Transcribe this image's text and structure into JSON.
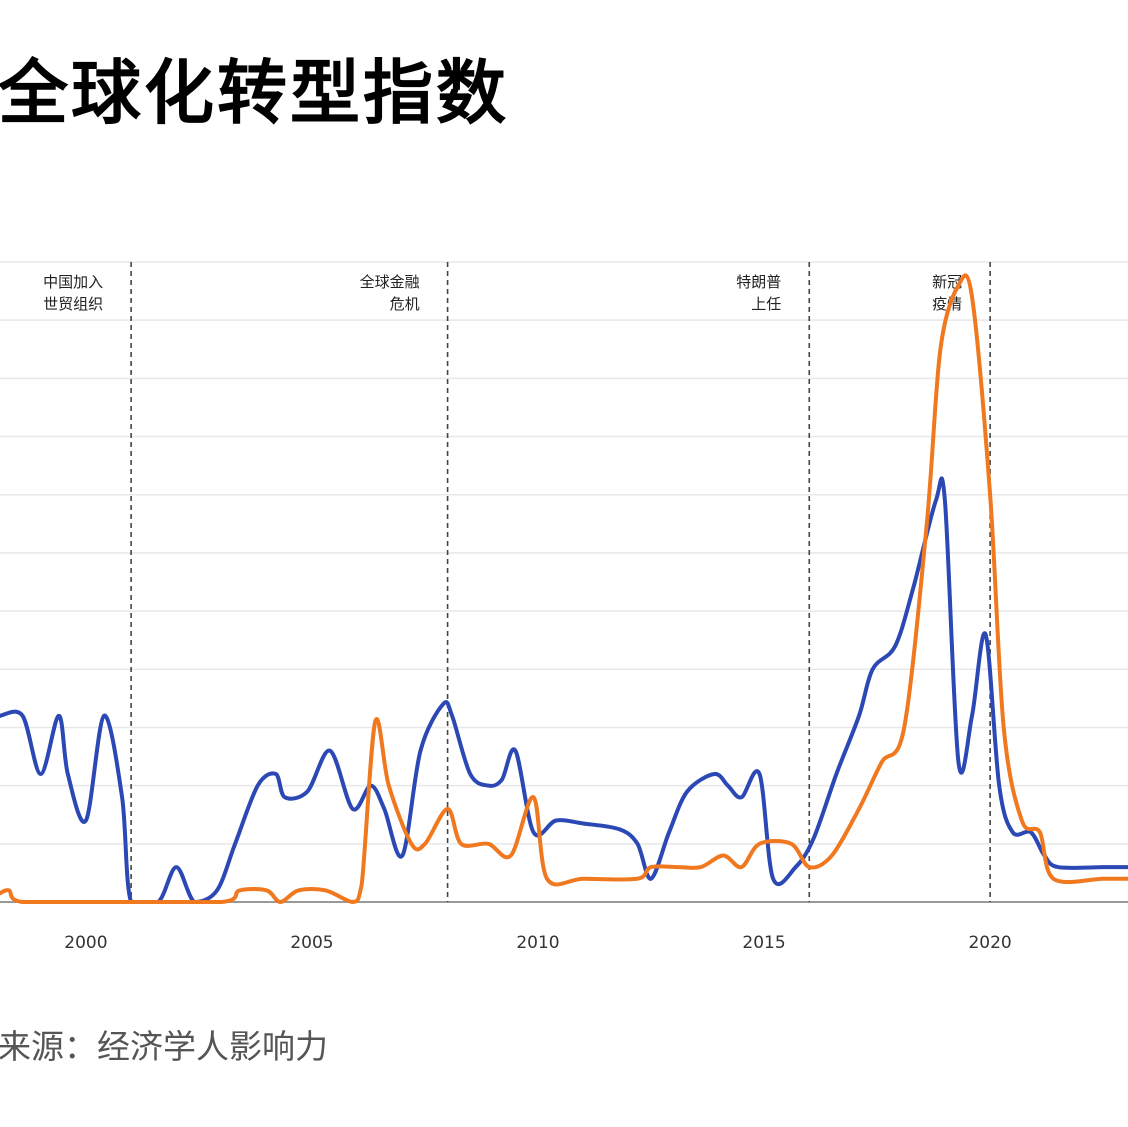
{
  "title": "全球化转型指数",
  "source": "来源：经济学人影响力",
  "chart_data": {
    "type": "line",
    "title": "全球化转型指数",
    "xlabel": "",
    "ylabel": "",
    "xlim": [
      1998.1,
      2023.05
    ],
    "ylim": [
      0,
      11
    ],
    "grid": "horizontal",
    "x_ticks": [
      "2000",
      "2005",
      "2010",
      "2015",
      "2020"
    ],
    "events": [
      {
        "x": 2001.0,
        "lines": [
          "中国加入",
          "世贸组织"
        ]
      },
      {
        "x": 2008.0,
        "lines": [
          "全球金融",
          "危机"
        ]
      },
      {
        "x": 2016.0,
        "lines": [
          "特朗普",
          "上任"
        ]
      },
      {
        "x": 2020.0,
        "lines": [
          "新冠",
          "疫情"
        ]
      }
    ],
    "colors": {
      "blue": "#2b48b4",
      "orange": "#f0781e",
      "grid": "#e8e8e8",
      "axis": "#999999",
      "event_line": "#444444"
    },
    "series": [
      {
        "color": "#2b48b4",
        "points": [
          [
            1998.1,
            3.2
          ],
          [
            1998.6,
            3.2
          ],
          [
            1999.0,
            2.2
          ],
          [
            1999.4,
            3.2
          ],
          [
            1999.6,
            2.2
          ],
          [
            2000.0,
            1.4
          ],
          [
            2000.4,
            3.2
          ],
          [
            2000.8,
            1.8
          ],
          [
            2001.0,
            0
          ],
          [
            2001.6,
            0
          ],
          [
            2002.0,
            0.6
          ],
          [
            2002.4,
            0
          ],
          [
            2002.9,
            0.2
          ],
          [
            2003.3,
            1.0
          ],
          [
            2003.8,
            2.0
          ],
          [
            2004.2,
            2.2
          ],
          [
            2004.4,
            1.8
          ],
          [
            2004.9,
            1.9
          ],
          [
            2005.4,
            2.6
          ],
          [
            2005.9,
            1.6
          ],
          [
            2006.3,
            2.0
          ],
          [
            2006.6,
            1.6
          ],
          [
            2007.0,
            0.8
          ],
          [
            2007.4,
            2.6
          ],
          [
            2007.9,
            3.4
          ],
          [
            2008.1,
            3.2
          ],
          [
            2008.5,
            2.2
          ],
          [
            2008.9,
            2.0
          ],
          [
            2009.2,
            2.1
          ],
          [
            2009.5,
            2.6
          ],
          [
            2009.9,
            1.2
          ],
          [
            2010.4,
            1.4
          ],
          [
            2011.0,
            1.35
          ],
          [
            2011.8,
            1.25
          ],
          [
            2012.2,
            1.0
          ],
          [
            2012.5,
            0.4
          ],
          [
            2012.9,
            1.2
          ],
          [
            2013.3,
            1.9
          ],
          [
            2013.9,
            2.2
          ],
          [
            2014.2,
            2.0
          ],
          [
            2014.5,
            1.8
          ],
          [
            2014.9,
            2.2
          ],
          [
            2015.2,
            0.4
          ],
          [
            2015.7,
            0.6
          ],
          [
            2016.1,
            1.1
          ],
          [
            2016.6,
            2.2
          ],
          [
            2017.1,
            3.2
          ],
          [
            2017.4,
            4.0
          ],
          [
            2017.9,
            4.4
          ],
          [
            2018.3,
            5.4
          ],
          [
            2018.8,
            6.9
          ],
          [
            2019.0,
            6.9
          ],
          [
            2019.3,
            2.4
          ],
          [
            2019.6,
            3.2
          ],
          [
            2019.9,
            4.6
          ],
          [
            2020.2,
            2.0
          ],
          [
            2020.5,
            1.2
          ],
          [
            2020.9,
            1.2
          ],
          [
            2021.2,
            0.8
          ],
          [
            2021.5,
            0.6
          ],
          [
            2022.5,
            0.6
          ],
          [
            2023.05,
            0.6
          ]
        ]
      },
      {
        "color": "#f0781e",
        "points": [
          [
            1998.1,
            0.15
          ],
          [
            1998.3,
            0.2
          ],
          [
            1998.6,
            0
          ],
          [
            2000.5,
            0
          ],
          [
            2003.0,
            0
          ],
          [
            2003.4,
            0.2
          ],
          [
            2004.0,
            0.2
          ],
          [
            2004.3,
            0
          ],
          [
            2004.7,
            0.2
          ],
          [
            2005.3,
            0.2
          ],
          [
            2005.9,
            0
          ],
          [
            2006.1,
            0.3
          ],
          [
            2006.4,
            3.1
          ],
          [
            2006.7,
            2.0
          ],
          [
            2007.2,
            1.0
          ],
          [
            2007.5,
            1.0
          ],
          [
            2008.0,
            1.6
          ],
          [
            2008.3,
            1.0
          ],
          [
            2008.9,
            1.0
          ],
          [
            2009.4,
            0.8
          ],
          [
            2009.9,
            1.8
          ],
          [
            2010.2,
            0.4
          ],
          [
            2011.0,
            0.4
          ],
          [
            2012.2,
            0.4
          ],
          [
            2012.5,
            0.6
          ],
          [
            2013.1,
            0.6
          ],
          [
            2013.6,
            0.6
          ],
          [
            2014.1,
            0.8
          ],
          [
            2014.5,
            0.6
          ],
          [
            2014.9,
            1.0
          ],
          [
            2015.6,
            1.0
          ],
          [
            2016.0,
            0.6
          ],
          [
            2016.5,
            0.8
          ],
          [
            2017.1,
            1.6
          ],
          [
            2017.6,
            2.4
          ],
          [
            2018.1,
            3.0
          ],
          [
            2018.6,
            6.5
          ],
          [
            2018.9,
            9.5
          ],
          [
            2019.3,
            10.6
          ],
          [
            2019.6,
            10.4
          ],
          [
            2020.0,
            7.0
          ],
          [
            2020.3,
            3.0
          ],
          [
            2020.7,
            1.4
          ],
          [
            2021.1,
            1.2
          ],
          [
            2021.4,
            0.4
          ],
          [
            2022.5,
            0.4
          ],
          [
            2023.05,
            0.4
          ]
        ]
      }
    ]
  }
}
